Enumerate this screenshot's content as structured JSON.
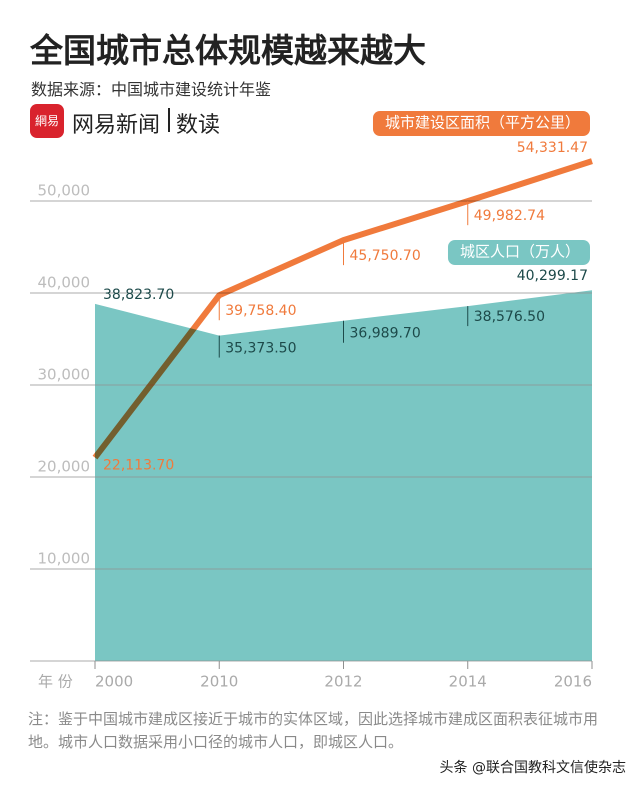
{
  "brand": {
    "logo": "網易",
    "name": "网易新闻",
    "section": "数读"
  },
  "chart_data": {
    "type": "line-area",
    "title": "全国城市总体规模越来越大",
    "subtitle": "数据来源：中国城市建设统计年鉴",
    "x_label": "年 份",
    "categories": [
      "2000",
      "2010",
      "2012",
      "2014",
      "2016"
    ],
    "series": [
      {
        "name": "城区人口（万人）",
        "type": "area",
        "color": "#7ac6c3",
        "values": [
          38823.7,
          35373.5,
          36989.7,
          38576.5,
          40299.17
        ],
        "value_labels": [
          "38,823.70",
          "35,373.50",
          "36,989.70",
          "38,576.50",
          "40,299.17"
        ]
      },
      {
        "name": "城市建设区面积（平方公里）",
        "type": "line",
        "color": "#f07a3c",
        "values": [
          22113.7,
          39758.4,
          45750.7,
          49982.74,
          54331.47
        ],
        "value_labels": [
          "22,113.70",
          "39,758.40",
          "45,750.70",
          "49,982.74",
          "54,331.47"
        ]
      }
    ],
    "ylim": [
      0,
      55000
    ],
    "yticks": [
      {
        "value": 10000,
        "label": "10,000"
      },
      {
        "value": 20000,
        "label": "20,000"
      },
      {
        "value": 30000,
        "label": "30,000"
      },
      {
        "value": 40000,
        "label": "40,000"
      },
      {
        "value": 50000,
        "label": "50,000"
      }
    ],
    "grid": true,
    "note": "注：鉴于中国城市建成区接近于城市的实体区域，因此选择城市建成区面积表征城市用地。城市人口数据采用小口径的城市人口，即城区人口。"
  },
  "watermark": "头条 @联合国教科文信使杂志"
}
